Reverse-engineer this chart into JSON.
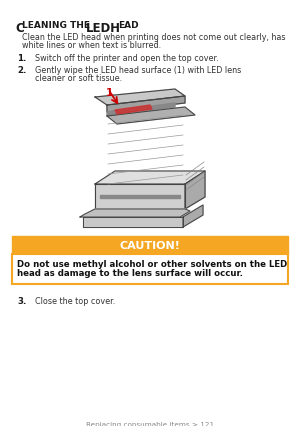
{
  "bg_color": "#ffffff",
  "title_line1_normal": "C",
  "title_line1_small": "LEANING THE ",
  "title_led": "LED",
  "title_head_h": "H",
  "title_head_ead": "EAD",
  "intro_text_line1": "Clean the LED head when printing does not come out clearly, has",
  "intro_text_line2": "white lines or when text is blurred.",
  "step1_num": "1.",
  "step1_text": "Switch off the printer and open the top cover.",
  "step2_num": "2.",
  "step2_text_line1": "Gently wipe the LED head surface (1) with LED lens",
  "step2_text_line2": "cleaner or soft tissue.",
  "caution_header": "CAUTION!",
  "caution_header_bg": "#f5a623",
  "caution_text_line1": "Do not use methyl alcohol or other solvents on the LED",
  "caution_text_line2": "head as damage to the lens surface will occur.",
  "caution_border": "#f5a623",
  "step3_num": "3.",
  "step3_text": "Close the top cover.",
  "footer_text": "Replacing consumable items > 121",
  "label_1_color": "#cc0000",
  "text_color": "#333333",
  "text_color_dark": "#111111"
}
